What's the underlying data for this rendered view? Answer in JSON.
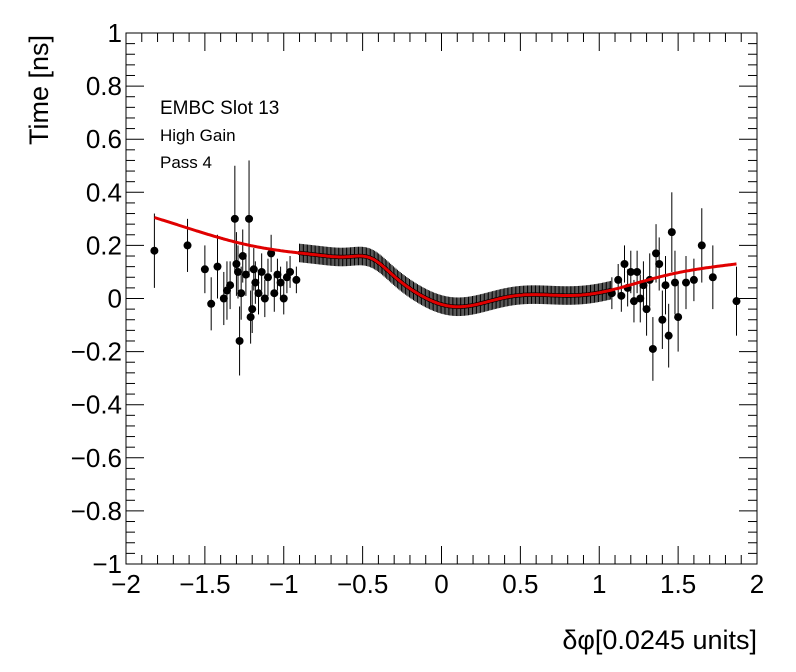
{
  "chart_data": {
    "type": "scatter",
    "xlabel": "δφ[0.0245 units]",
    "ylabel": "Time [ns]",
    "xlim": [
      -2,
      2
    ],
    "ylim": [
      -1,
      1
    ],
    "x_ticks": [
      -2,
      -1.5,
      -1,
      -0.5,
      0,
      0.5,
      1,
      1.5,
      2
    ],
    "y_ticks": [
      -1,
      -0.8,
      -0.6,
      -0.4,
      -0.2,
      0,
      0.2,
      0.4,
      0.6,
      0.8,
      1
    ],
    "x_tick_labels": [
      "−2",
      "−1.5",
      "−1",
      "−0.5",
      "0",
      "0.5",
      "1",
      "1.5",
      "2"
    ],
    "y_tick_labels": [
      "−1",
      "−0.8",
      "−0.6",
      "−0.4",
      "−0.2",
      "0",
      "0.2",
      "0.4",
      "0.6",
      "0.8",
      "1"
    ],
    "annotations": [
      "EMBC Slot 13",
      "High Gain",
      "Pass 4"
    ],
    "marker_color": "#000000",
    "fit_color": "#e00000",
    "grid": false,
    "points": [
      {
        "x": -1.82,
        "y": 0.18,
        "err": 0.14
      },
      {
        "x": -1.61,
        "y": 0.2,
        "err": 0.1
      },
      {
        "x": -1.5,
        "y": 0.11,
        "err": 0.09
      },
      {
        "x": -1.46,
        "y": -0.02,
        "err": 0.1
      },
      {
        "x": -1.42,
        "y": 0.12,
        "err": 0.12
      },
      {
        "x": -1.38,
        "y": 0.0,
        "err": 0.1
      },
      {
        "x": -1.36,
        "y": 0.03,
        "err": 0.11
      },
      {
        "x": -1.34,
        "y": 0.05,
        "err": 0.09
      },
      {
        "x": -1.31,
        "y": 0.3,
        "err": 0.2
      },
      {
        "x": -1.3,
        "y": 0.13,
        "err": 0.12
      },
      {
        "x": -1.29,
        "y": 0.1,
        "err": 0.1
      },
      {
        "x": -1.28,
        "y": -0.16,
        "err": 0.13
      },
      {
        "x": -1.27,
        "y": 0.02,
        "err": 0.1
      },
      {
        "x": -1.26,
        "y": 0.16,
        "err": 0.1
      },
      {
        "x": -1.24,
        "y": 0.09,
        "err": 0.08
      },
      {
        "x": -1.22,
        "y": 0.3,
        "err": 0.22
      },
      {
        "x": -1.21,
        "y": -0.07,
        "err": 0.1
      },
      {
        "x": -1.2,
        "y": -0.04,
        "err": 0.09
      },
      {
        "x": -1.19,
        "y": 0.11,
        "err": 0.08
      },
      {
        "x": -1.18,
        "y": 0.06,
        "err": 0.08
      },
      {
        "x": -1.16,
        "y": 0.02,
        "err": 0.08
      },
      {
        "x": -1.14,
        "y": 0.1,
        "err": 0.07
      },
      {
        "x": -1.12,
        "y": 0.0,
        "err": 0.07
      },
      {
        "x": -1.1,
        "y": 0.08,
        "err": 0.07
      },
      {
        "x": -1.08,
        "y": 0.17,
        "err": 0.07
      },
      {
        "x": -1.06,
        "y": 0.02,
        "err": 0.07
      },
      {
        "x": -1.04,
        "y": 0.09,
        "err": 0.06
      },
      {
        "x": -1.02,
        "y": 0.06,
        "err": 0.06
      },
      {
        "x": -1.0,
        "y": 0.0,
        "err": 0.06
      },
      {
        "x": -0.98,
        "y": 0.08,
        "err": 0.06
      },
      {
        "x": -0.96,
        "y": 0.1,
        "err": 0.06
      },
      {
        "x": -0.92,
        "y": 0.07,
        "err": 0.05
      },
      {
        "x": 1.08,
        "y": 0.02,
        "err": 0.06
      },
      {
        "x": 1.12,
        "y": 0.07,
        "err": 0.06
      },
      {
        "x": 1.14,
        "y": 0.01,
        "err": 0.06
      },
      {
        "x": 1.16,
        "y": 0.13,
        "err": 0.07
      },
      {
        "x": 1.18,
        "y": 0.04,
        "err": 0.07
      },
      {
        "x": 1.2,
        "y": 0.1,
        "err": 0.08
      },
      {
        "x": 1.22,
        "y": -0.01,
        "err": 0.08
      },
      {
        "x": 1.24,
        "y": 0.1,
        "err": 0.08
      },
      {
        "x": 1.26,
        "y": 0.0,
        "err": 0.09
      },
      {
        "x": 1.28,
        "y": 0.05,
        "err": 0.09
      },
      {
        "x": 1.3,
        "y": -0.04,
        "err": 0.1
      },
      {
        "x": 1.32,
        "y": 0.07,
        "err": 0.1
      },
      {
        "x": 1.34,
        "y": -0.19,
        "err": 0.12
      },
      {
        "x": 1.36,
        "y": 0.17,
        "err": 0.11
      },
      {
        "x": 1.38,
        "y": 0.13,
        "err": 0.1
      },
      {
        "x": 1.4,
        "y": -0.08,
        "err": 0.11
      },
      {
        "x": 1.42,
        "y": 0.05,
        "err": 0.11
      },
      {
        "x": 1.44,
        "y": -0.14,
        "err": 0.12
      },
      {
        "x": 1.46,
        "y": 0.25,
        "err": 0.15
      },
      {
        "x": 1.48,
        "y": 0.06,
        "err": 0.12
      },
      {
        "x": 1.5,
        "y": -0.07,
        "err": 0.13
      },
      {
        "x": 1.55,
        "y": 0.06,
        "err": 0.1
      },
      {
        "x": 1.6,
        "y": 0.07,
        "err": 0.08
      },
      {
        "x": 1.65,
        "y": 0.2,
        "err": 0.14
      },
      {
        "x": 1.72,
        "y": 0.08,
        "err": 0.12
      },
      {
        "x": 1.87,
        "y": -0.01,
        "err": 0.13
      }
    ]
  }
}
